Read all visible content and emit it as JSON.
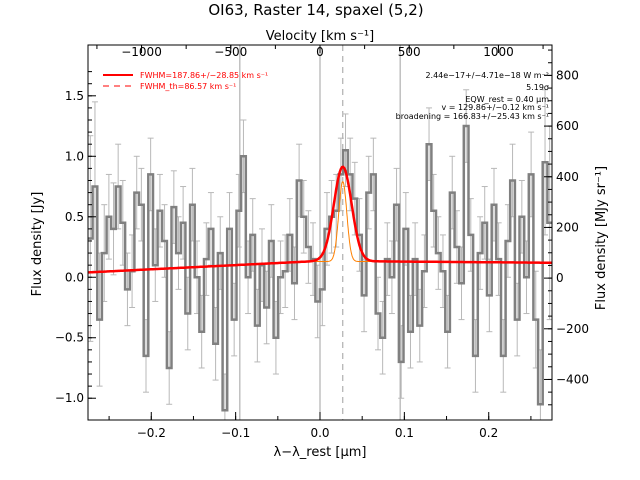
{
  "chart_data": {
    "type": "line",
    "title": "OI63, Raster 14, spaxel (5,2)",
    "xlabel": "λ−λ_rest [μm]",
    "ylabel": "Flux density [Jy]",
    "ylabel_right": "Flux density [MJy sr⁻¹]",
    "xlabel_top": "Velocity [km s⁻¹]",
    "xlim": [
      -0.275,
      0.275
    ],
    "ylim": [
      -1.18,
      1.92
    ],
    "top_xlim": [
      -1300,
      1300
    ],
    "right_ylim": [
      -560,
      920
    ],
    "x_ticks": [
      -0.2,
      -0.1,
      0.0,
      0.1,
      0.2
    ],
    "x_tick_labels": [
      "−0.2",
      "−0.1",
      "0.0",
      "0.1",
      "0.2"
    ],
    "y_ticks": [
      -1.0,
      -0.5,
      0.0,
      0.5,
      1.0,
      1.5
    ],
    "y_tick_labels": [
      "−1.0",
      "−0.5",
      "0.0",
      "0.5",
      "1.0",
      "1.5"
    ],
    "top_ticks": [
      -1000,
      -500,
      0,
      500,
      1000
    ],
    "top_tick_labels": [
      "−1000",
      "−500",
      "0",
      "500",
      "1000"
    ],
    "right_ticks": [
      -400,
      -200,
      0,
      200,
      400,
      600,
      800
    ],
    "right_tick_labels": [
      "−400",
      "−200",
      "0",
      "200",
      "400",
      "600",
      "800"
    ],
    "vertical_lines": [
      -0.095,
      0.0,
      0.095
    ],
    "dashed_line": 0.027,
    "legend": [
      {
        "label": "FWHM=187.86+/−28.85 km s⁻¹",
        "style": "solid",
        "color": "#ff0000"
      },
      {
        "label": "FWHM_th=86.57 km s⁻¹",
        "style": "dashed",
        "color": "#ff0000"
      }
    ],
    "annotations": [
      "2.44e−17+/−4.71e−18 W m⁻²",
      "5.19σ",
      "EQW_rest = 0.40 μm",
      "v = 129.86+/−0.12 km s⁻¹",
      "broadening = 166.83+/−25.43 km s⁻¹"
    ],
    "series": [
      {
        "name": "spectrum",
        "color": "#808080",
        "x": [
          -0.275,
          -0.2695,
          -0.264,
          -0.2585,
          -0.253,
          -0.2475,
          -0.242,
          -0.2365,
          -0.231,
          -0.2255,
          -0.22,
          -0.2145,
          -0.209,
          -0.2035,
          -0.198,
          -0.1925,
          -0.187,
          -0.1815,
          -0.176,
          -0.1705,
          -0.165,
          -0.1595,
          -0.154,
          -0.1485,
          -0.143,
          -0.1375,
          -0.132,
          -0.1265,
          -0.121,
          -0.1155,
          -0.11,
          -0.1045,
          -0.099,
          -0.0935,
          -0.088,
          -0.0825,
          -0.077,
          -0.0715,
          -0.066,
          -0.0605,
          -0.055,
          -0.0495,
          -0.044,
          -0.0385,
          -0.033,
          -0.0275,
          -0.022,
          -0.0165,
          -0.011,
          -0.0055,
          0.0,
          0.0055,
          0.011,
          0.0165,
          0.022,
          0.0275,
          0.033,
          0.0385,
          0.044,
          0.0495,
          0.055,
          0.0605,
          0.066,
          0.0715,
          0.077,
          0.0825,
          0.088,
          0.0935,
          0.099,
          0.1045,
          0.11,
          0.1155,
          0.121,
          0.1265,
          0.132,
          0.1375,
          0.143,
          0.1485,
          0.154,
          0.1595,
          0.165,
          0.1705,
          0.176,
          0.1815,
          0.187,
          0.1925,
          0.198,
          0.2035,
          0.209,
          0.2145,
          0.22,
          0.2255,
          0.231,
          0.2365,
          0.242,
          0.2475,
          0.253,
          0.2585,
          0.264,
          0.2695
        ],
        "values": [
          0.32,
          0.75,
          -0.35,
          0.2,
          0.5,
          0.4,
          0.75,
          0.45,
          -0.1,
          0.05,
          0.7,
          0.6,
          -0.65,
          0.85,
          0.1,
          0.55,
          0.3,
          -0.75,
          0.58,
          0.2,
          0.45,
          -0.3,
          0.6,
          0.0,
          -0.45,
          0.15,
          0.4,
          -0.55,
          0.2,
          -1.1,
          0.4,
          -0.35,
          0.55,
          1.0,
          0.0,
          0.35,
          -0.4,
          0.1,
          -0.25,
          0.3,
          -0.5,
          0.0,
          0.05,
          0.35,
          -0.05,
          0.8,
          0.5,
          0.25,
          0.15,
          -0.2,
          -0.1,
          0.4,
          0.5,
          0.55,
          0.85,
          1.05,
          0.85,
          0.65,
          0.35,
          -0.15,
          0.7,
          0.85,
          -0.3,
          -0.5,
          0.15,
          0.0,
          0.6,
          -0.7,
          0.4,
          -0.45,
          0.15,
          -0.4,
          0.05,
          1.1,
          0.55,
          0.2,
          0.05,
          -0.45,
          0.7,
          0.25,
          -0.05,
          1.25,
          0.35,
          -0.65,
          0.2,
          0.45,
          -0.15,
          0.6,
          0.15,
          -0.65,
          0.3,
          0.8,
          -0.35,
          0.5,
          0.0,
          0.85,
          -0.35,
          -1.05,
          0.95,
          0.45
        ],
        "errors": [
          0.85,
          0.7,
          0.55,
          0.4,
          0.35,
          0.38,
          0.35,
          0.35,
          0.3,
          0.3,
          0.3,
          0.3,
          0.3,
          0.3,
          0.3,
          0.3,
          0.3,
          0.3,
          0.3,
          0.3,
          0.3,
          0.3,
          0.3,
          0.3,
          0.3,
          0.3,
          0.3,
          0.3,
          0.3,
          0.3,
          0.3,
          0.3,
          0.3,
          0.3,
          0.3,
          0.3,
          0.3,
          0.3,
          0.3,
          0.3,
          0.3,
          0.3,
          0.3,
          0.3,
          0.3,
          0.3,
          0.3,
          0.3,
          0.3,
          0.3,
          0.3,
          0.3,
          0.3,
          0.3,
          0.3,
          0.3,
          0.3,
          0.3,
          0.3,
          0.3,
          0.3,
          0.3,
          0.3,
          0.3,
          0.3,
          0.3,
          0.3,
          0.3,
          0.3,
          0.3,
          0.3,
          0.3,
          0.3,
          0.3,
          0.3,
          0.3,
          0.3,
          0.3,
          0.3,
          0.3,
          0.3,
          0.3,
          0.3,
          0.3,
          0.3,
          0.3,
          0.3,
          0.3,
          0.3,
          0.3,
          0.3,
          0.3,
          0.3,
          0.3,
          0.3,
          0.35,
          0.4,
          0.45,
          0.6,
          0.8
        ]
      },
      {
        "name": "fit",
        "color": "#ff0000",
        "model": "gaussian",
        "amplitude": 0.78,
        "center": 0.027,
        "sigma": 0.0105,
        "continuum_at_xmin": 0.04,
        "continuum_at_xmax": 0.12,
        "continuum_peak": 0.135,
        "continuum_peak_x": 0.0
      },
      {
        "name": "thermal",
        "color": "#ff8000",
        "model": "gaussian",
        "amplitude": 0.66,
        "center": 0.027,
        "sigma": 0.0048,
        "baseline": 0.13
      }
    ]
  }
}
